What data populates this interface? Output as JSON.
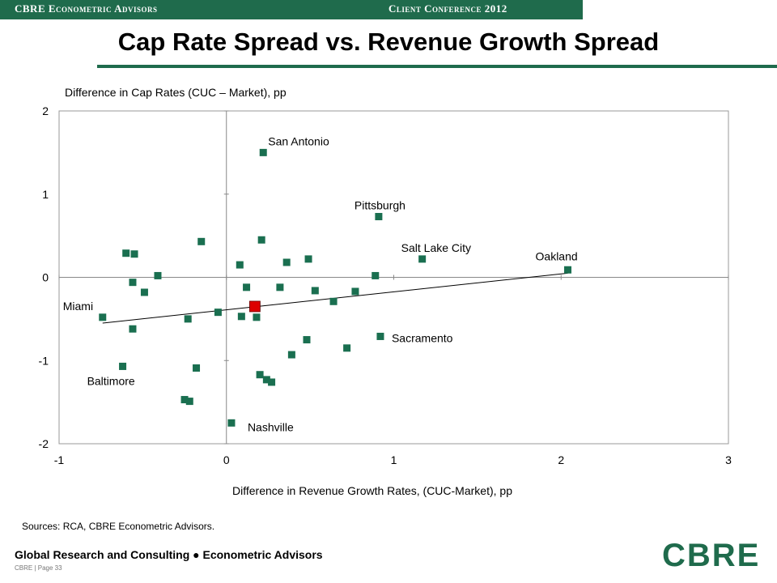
{
  "header": {
    "left_label": "CBRE Econometric Advisors",
    "right_label": "Client Conference 2012"
  },
  "slide": {
    "title": "Cap Rate Spread vs. Revenue Growth Spread",
    "sources": "Sources: RCA, CBRE Econometric Advisors.",
    "footer": "Global Research and Consulting ● Econometric Advisors",
    "page_label": "CBRE  |  Page 33",
    "logo_text": "CBRE"
  },
  "colors": {
    "brand_green": "#1f6b4c",
    "marker_green": "#1a6f50",
    "highlight_red": "#dd0000"
  },
  "chart_data": {
    "type": "scatter",
    "title": "",
    "xlabel": "Difference in Revenue Growth Rates, (CUC-Market), pp",
    "ylabel": "Difference in Cap Rates (CUC – Market), pp",
    "xlim": [
      -1,
      3
    ],
    "ylim": [
      -2,
      2
    ],
    "xticks": [
      -1,
      0,
      1,
      2,
      3
    ],
    "yticks": [
      -2,
      -1,
      0,
      1,
      2
    ],
    "grid": false,
    "points": [
      {
        "x": 0.22,
        "y": 1.5,
        "label": "San Antonio"
      },
      {
        "x": 0.91,
        "y": 0.73,
        "label": "Pittsburgh"
      },
      {
        "x": 1.17,
        "y": 0.22,
        "label": "Salt Lake City"
      },
      {
        "x": 2.04,
        "y": 0.09,
        "label": "Oakland"
      },
      {
        "x": -0.74,
        "y": -0.48,
        "label": "Miami"
      },
      {
        "x": 0.92,
        "y": -0.71,
        "label": "Sacramento"
      },
      {
        "x": -0.62,
        "y": -1.07,
        "label": "Baltimore"
      },
      {
        "x": 0.03,
        "y": -1.75,
        "label": "Nashville"
      },
      {
        "x": -0.15,
        "y": 0.43,
        "label": ""
      },
      {
        "x": 0.21,
        "y": 0.45,
        "label": ""
      },
      {
        "x": -0.6,
        "y": 0.29,
        "label": ""
      },
      {
        "x": -0.55,
        "y": 0.28,
        "label": ""
      },
      {
        "x": -0.41,
        "y": 0.02,
        "label": ""
      },
      {
        "x": -0.56,
        "y": -0.06,
        "label": ""
      },
      {
        "x": -0.49,
        "y": -0.18,
        "label": ""
      },
      {
        "x": 0.08,
        "y": 0.15,
        "label": ""
      },
      {
        "x": 0.36,
        "y": 0.18,
        "label": ""
      },
      {
        "x": 0.49,
        "y": 0.22,
        "label": ""
      },
      {
        "x": 0.12,
        "y": -0.12,
        "label": ""
      },
      {
        "x": 0.32,
        "y": -0.12,
        "label": ""
      },
      {
        "x": 0.53,
        "y": -0.16,
        "label": ""
      },
      {
        "x": 0.77,
        "y": -0.17,
        "label": ""
      },
      {
        "x": 0.89,
        "y": 0.02,
        "label": ""
      },
      {
        "x": 0.64,
        "y": -0.29,
        "label": ""
      },
      {
        "x": -0.05,
        "y": -0.42,
        "label": ""
      },
      {
        "x": 0.09,
        "y": -0.47,
        "label": ""
      },
      {
        "x": 0.18,
        "y": -0.48,
        "label": ""
      },
      {
        "x": -0.23,
        "y": -0.5,
        "label": ""
      },
      {
        "x": -0.56,
        "y": -0.62,
        "label": ""
      },
      {
        "x": 0.48,
        "y": -0.75,
        "label": ""
      },
      {
        "x": 0.72,
        "y": -0.85,
        "label": ""
      },
      {
        "x": 0.39,
        "y": -0.93,
        "label": ""
      },
      {
        "x": -0.18,
        "y": -1.09,
        "label": ""
      },
      {
        "x": 0.2,
        "y": -1.17,
        "label": ""
      },
      {
        "x": 0.24,
        "y": -1.23,
        "label": ""
      },
      {
        "x": 0.27,
        "y": -1.26,
        "label": ""
      },
      {
        "x": -0.25,
        "y": -1.47,
        "label": ""
      },
      {
        "x": -0.22,
        "y": -1.49,
        "label": ""
      }
    ],
    "highlight_point": {
      "x": 0.17,
      "y": -0.35
    },
    "trendline": {
      "x1": -0.74,
      "y1": -0.55,
      "x2": 2.04,
      "y2": 0.05
    }
  }
}
